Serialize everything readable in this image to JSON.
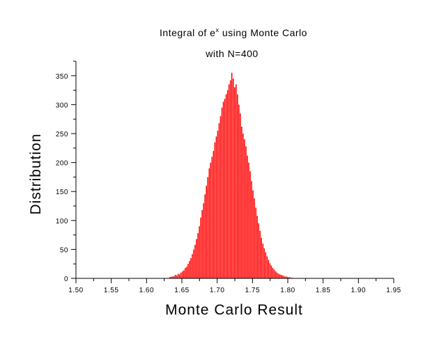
{
  "chart_data": {
    "type": "bar",
    "title": "Integral of e",
    "title_superscript": "x",
    "title_suffix": " using Monte Carlo",
    "subtitle": "with N=400",
    "xlabel": "Monte Carlo Result",
    "ylabel": "Distribution",
    "xlim": [
      1.5,
      1.95
    ],
    "ylim": [
      0,
      375
    ],
    "xticks": [
      1.5,
      1.55,
      1.6,
      1.65,
      1.7,
      1.75,
      1.8,
      1.85,
      1.9,
      1.95
    ],
    "xtick_labels": [
      "1.50",
      "1.55",
      "1.60",
      "1.65",
      "1.70",
      "1.75",
      "1.80",
      "1.85",
      "1.90",
      "1.95"
    ],
    "yticks": [
      0,
      50,
      100,
      150,
      200,
      250,
      300,
      350
    ],
    "ytick_labels": [
      "0",
      "50",
      "100",
      "150",
      "200",
      "250",
      "300",
      "350"
    ],
    "bar_color": "#ff0000",
    "bin_width": 0.002,
    "bin_starts": [
      1.632,
      1.634,
      1.636,
      1.638,
      1.64,
      1.642,
      1.644,
      1.646,
      1.648,
      1.65,
      1.652,
      1.654,
      1.656,
      1.658,
      1.66,
      1.662,
      1.664,
      1.666,
      1.668,
      1.67,
      1.672,
      1.674,
      1.676,
      1.678,
      1.68,
      1.682,
      1.684,
      1.686,
      1.688,
      1.69,
      1.692,
      1.694,
      1.696,
      1.698,
      1.7,
      1.702,
      1.704,
      1.706,
      1.708,
      1.71,
      1.712,
      1.714,
      1.716,
      1.718,
      1.72,
      1.722,
      1.724,
      1.726,
      1.728,
      1.73,
      1.732,
      1.734,
      1.736,
      1.738,
      1.74,
      1.742,
      1.744,
      1.746,
      1.748,
      1.75,
      1.752,
      1.754,
      1.756,
      1.758,
      1.76,
      1.762,
      1.764,
      1.766,
      1.768,
      1.77,
      1.772,
      1.774,
      1.776,
      1.778,
      1.78,
      1.782,
      1.784,
      1.786,
      1.788,
      1.79,
      1.792,
      1.794,
      1.796,
      1.798,
      1.8,
      1.802,
      1.804,
      1.806
    ],
    "values": [
      2,
      3,
      3,
      4,
      6,
      5,
      8,
      7,
      10,
      12,
      14,
      18,
      20,
      25,
      30,
      35,
      42,
      50,
      58,
      68,
      78,
      90,
      105,
      118,
      130,
      145,
      160,
      175,
      190,
      200,
      210,
      220,
      235,
      245,
      255,
      268,
      280,
      295,
      305,
      310,
      318,
      325,
      335,
      342,
      355,
      345,
      330,
      335,
      318,
      300,
      285,
      262,
      250,
      240,
      228,
      212,
      200,
      185,
      168,
      152,
      138,
      122,
      108,
      95,
      82,
      70,
      60,
      52,
      45,
      38,
      32,
      26,
      22,
      18,
      15,
      12,
      10,
      8,
      7,
      6,
      5,
      4,
      3,
      3,
      2,
      2,
      1,
      1
    ]
  }
}
